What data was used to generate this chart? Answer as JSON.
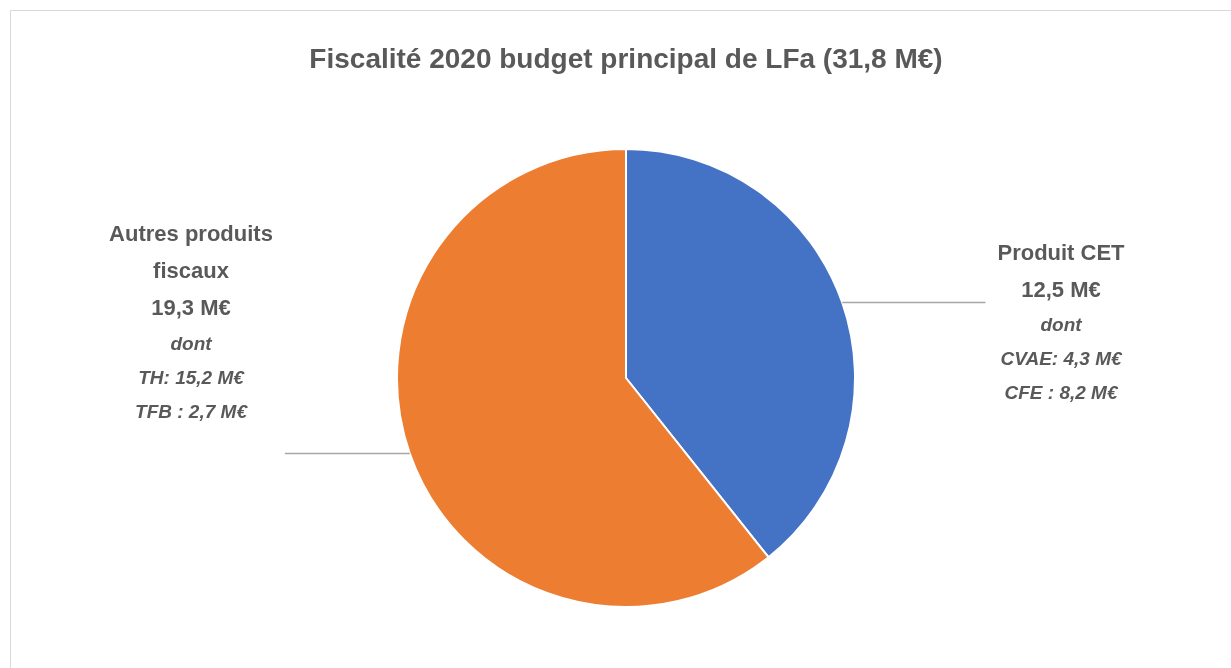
{
  "chart_data": {
    "type": "pie",
    "title": "Fiscalité 2020 budget principal de LFa (31,8 M€)",
    "categories": [
      "Produit CET",
      "Autres produits fiscaux"
    ],
    "values": [
      12.5,
      19.3
    ],
    "colors": [
      "#4472c4",
      "#ed7d31"
    ],
    "value_labels": [
      "12,5 M€",
      "19,3 M€"
    ],
    "annotations": [
      "dont\nCVAE: 4,3 M€\nCFE : 8,2 M€",
      "dont\nTH: 15,2 M€\nTFB : 2,7 M€"
    ],
    "legend": false
  }
}
